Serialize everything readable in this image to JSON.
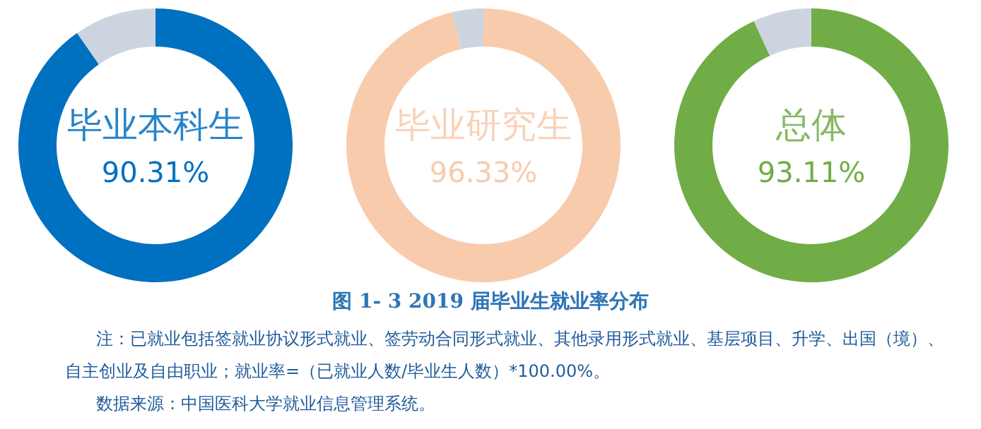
{
  "chart_data": [
    {
      "type": "donut",
      "title": "毕业本科生",
      "categories": [
        null,
        null
      ],
      "values": [
        90.31,
        9.69
      ],
      "colors": [
        "#0070c0",
        "#ccd5df"
      ],
      "value_labels": [
        "90.31%",
        null
      ]
    },
    {
      "type": "donut",
      "title": "毕业研究生",
      "categories": [
        null,
        null
      ],
      "values": [
        96.33,
        3.67
      ],
      "colors": [
        "#f8cbad",
        "#ccd5df"
      ],
      "value_labels": [
        "96.33%",
        null
      ]
    },
    {
      "type": "donut",
      "title": "总体",
      "categories": [
        null,
        null
      ],
      "values": [
        93.11,
        6.89
      ],
      "colors": [
        "#70ad47",
        "#ccd5df"
      ],
      "value_labels": [
        "93.11%",
        null
      ]
    },
    {
      "type": "other",
      "title": "图 1- 3    2019 届毕业生就业率分布",
      "annotations": [
        "注：已就业包括签就业协议形式就业、签劳动合同形式就业、其他录用形式就业、基层项目、升学、出国（境）、自主创业及自由职业；就业率=（已就业人数/毕业生人数）*100.00%。",
        "数据来源：中国医科大学就业信息管理系统。"
      ]
    }
  ]
}
